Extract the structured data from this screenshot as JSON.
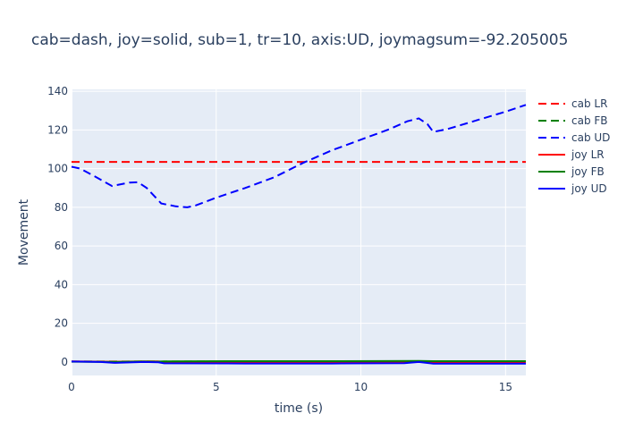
{
  "chart_data": {
    "type": "line",
    "title": "cab=dash, joy=solid, sub=1, tr=10, axis:UD, joymagsum=-92.205005",
    "xlabel": "time (s)",
    "ylabel": "Movement",
    "xlim": [
      0,
      15.7
    ],
    "ylim": [
      -7,
      141
    ],
    "xticks": [
      0,
      5,
      10,
      15
    ],
    "yticks": [
      0,
      20,
      40,
      60,
      80,
      100,
      120,
      140
    ],
    "grid": true,
    "legend_position": "right",
    "series": [
      {
        "name": "cab LR",
        "style": "dash",
        "color": "#ff0000",
        "x": [
          0,
          15.7
        ],
        "y": [
          103.5,
          103.5
        ]
      },
      {
        "name": "cab FB",
        "style": "dash",
        "color": "#008000",
        "x": [
          0,
          15.7
        ],
        "y": [
          0.2,
          0.2
        ]
      },
      {
        "name": "cab UD",
        "style": "dash",
        "color": "#0000ff",
        "x": [
          0,
          0.3,
          0.8,
          1.4,
          2.0,
          2.3,
          2.6,
          3.1,
          3.6,
          4.0,
          4.3,
          5.0,
          6.0,
          7.0,
          8.0,
          9.0,
          10.0,
          11.0,
          11.6,
          12.0,
          12.3,
          12.5,
          13.0,
          14.0,
          15.0,
          15.7
        ],
        "y": [
          101,
          100,
          96,
          91,
          92.8,
          93,
          90,
          82,
          80.5,
          80,
          81,
          85,
          90,
          95.5,
          103,
          109.5,
          115,
          120.5,
          124.5,
          126,
          123,
          119,
          120.5,
          125,
          129.5,
          133
        ]
      },
      {
        "name": "joy LR",
        "style": "solid",
        "color": "#ff0000",
        "x": [
          0,
          1.5,
          2.5,
          3.0,
          3.2,
          6.0,
          9.0,
          12.0,
          12.5,
          15.7
        ],
        "y": [
          0.3,
          0.1,
          0.3,
          0.3,
          -0.2,
          -0.3,
          -0.3,
          0.2,
          -0.5,
          -0.5
        ]
      },
      {
        "name": "joy FB",
        "style": "solid",
        "color": "#008000",
        "x": [
          0,
          1.5,
          2.5,
          3.0,
          3.2,
          6.0,
          9.0,
          12.0,
          12.5,
          15.7
        ],
        "y": [
          0.1,
          0.0,
          0.2,
          0.1,
          0.3,
          0.4,
          0.4,
          0.5,
          0.4,
          0.4
        ]
      },
      {
        "name": "joy UD",
        "style": "solid",
        "color": "#0000ff",
        "x": [
          0,
          1.0,
          1.5,
          2.5,
          3.0,
          3.2,
          6.0,
          9.0,
          11.5,
          12.0,
          12.5,
          15.7
        ],
        "y": [
          0.2,
          0.0,
          -0.5,
          0.0,
          -0.2,
          -0.7,
          -0.8,
          -0.8,
          -0.6,
          0.0,
          -0.9,
          -0.9
        ]
      }
    ]
  }
}
